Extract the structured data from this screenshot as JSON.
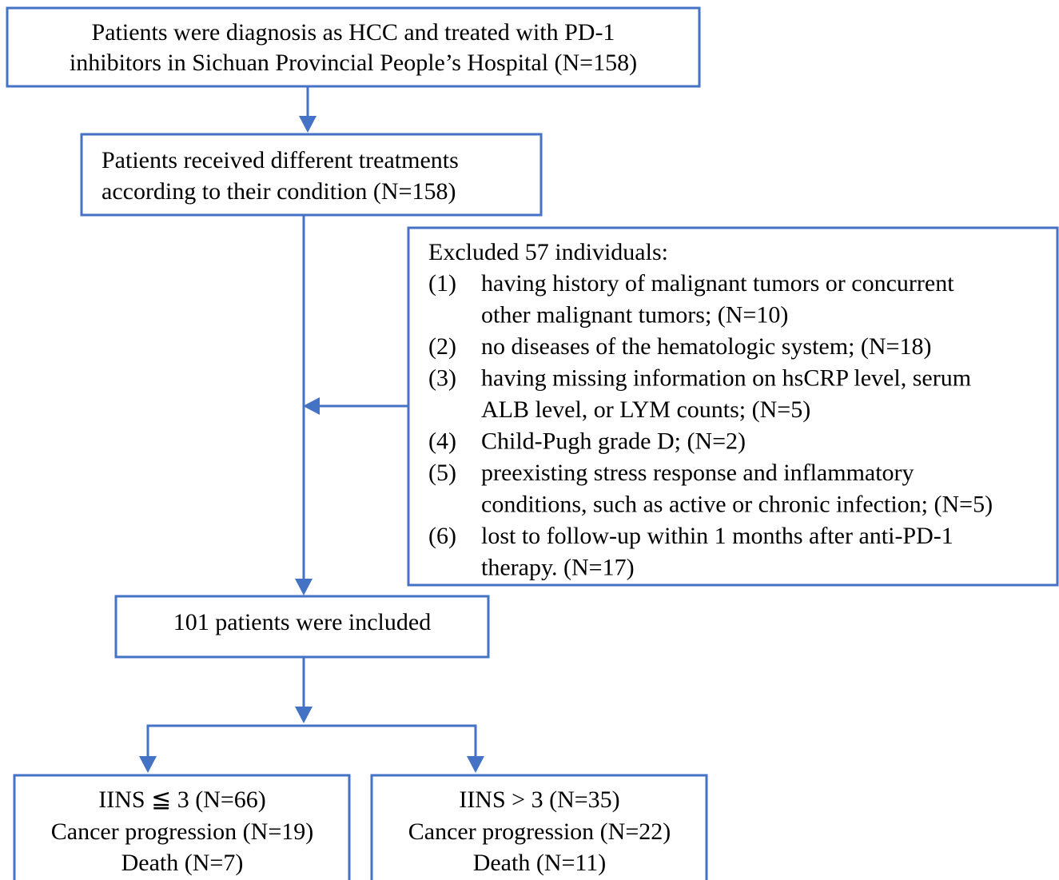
{
  "nodes": [
    {
      "lines": [
        "Patients were diagnosis as HCC and treated with PD-1",
        "inhibitors in Sichuan Provincial People’s Hospital (N=158)"
      ]
    },
    {
      "lines": [
        "Patients received different treatments",
        "according to their condition (N=158)"
      ]
    },
    {
      "lines": [
        "101 patients were included"
      ]
    },
    {
      "lines": [
        "IINS ≦ 3 (N=66)",
        "Cancer progression (N=19)",
        "Death (N=7)"
      ]
    },
    {
      "lines": [
        "IINS > 3 (N=35)",
        "Cancer progression (N=22)",
        "Death (N=11)"
      ]
    }
  ],
  "exclusion": {
    "title": "Excluded 57 individuals:",
    "items": [
      {
        "number": "(1)",
        "lines": [
          "having history of malignant tumors or concurrent",
          "other malignant tumors; (N=10)"
        ]
      },
      {
        "number": "(2)",
        "lines": [
          "no diseases of the hematologic system; (N=18)"
        ]
      },
      {
        "number": "(3)",
        "lines": [
          "having missing information on hsCRP level, serum",
          "ALB level, or LYM counts; (N=5)"
        ]
      },
      {
        "number": "(4)",
        "lines": [
          "Child-Pugh grade D; (N=2)"
        ]
      },
      {
        "number": "(5)",
        "lines": [
          "preexisting stress response and inflammatory",
          "conditions, such as active or chronic infection; (N=5)"
        ]
      },
      {
        "number": "(6)",
        "lines": [
          "lost to follow-up within 1 months after anti-PD-1",
          "therapy. (N=17)"
        ]
      }
    ]
  }
}
